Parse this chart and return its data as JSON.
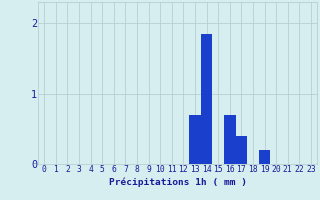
{
  "hours": [
    0,
    1,
    2,
    3,
    4,
    5,
    6,
    7,
    8,
    9,
    10,
    11,
    12,
    13,
    14,
    15,
    16,
    17,
    18,
    19,
    20,
    21,
    22,
    23
  ],
  "values": [
    0,
    0,
    0,
    0,
    0,
    0,
    0,
    0,
    0,
    0,
    0,
    0,
    0,
    0.7,
    1.85,
    0,
    0.7,
    0.4,
    0,
    0.2,
    0,
    0,
    0,
    0
  ],
  "bar_color": "#1a3fcc",
  "background_color": "#d6eef0",
  "grid_color": "#b8d0d0",
  "axis_color": "#1a1a99",
  "xlabel": "Précipitations 1h ( mm )",
  "xlabel_fontsize": 6.8,
  "tick_fontsize": 5.8,
  "ylim": [
    0,
    2.3
  ],
  "yticks": [
    0,
    1,
    2
  ],
  "xlim": [
    -0.5,
    23.5
  ]
}
